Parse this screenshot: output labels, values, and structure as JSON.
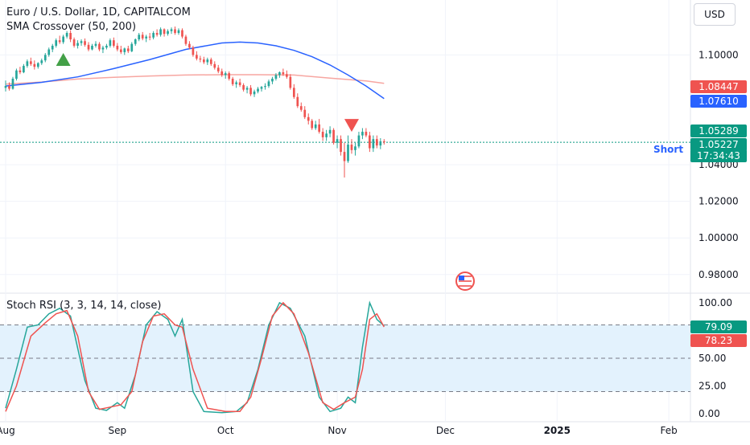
{
  "header": {
    "symbol_line": "Euro / U.S. Dollar, 1D, CAPITALCOM",
    "indicator_line": "SMA Crossover (50, 200)",
    "currency_button": "USD"
  },
  "colors": {
    "up": "#26a69a",
    "down": "#ef5350",
    "sma50": "#2962ff",
    "sma200": "#f7a6a1",
    "stoch_k": "#26a69a",
    "stoch_d": "#ef5350",
    "band_fill": "#e3f2fd",
    "current_price_line": "#089981"
  },
  "price_scale": {
    "tick_labels": [
      "1.10000",
      "1.04000",
      "1.02000",
      "1.00000",
      "0.98000"
    ],
    "tags": [
      {
        "text": "1.08447",
        "color": "#ef5350"
      },
      {
        "text": "1.07610",
        "color": "#2962ff"
      },
      {
        "text": "1.05289",
        "color": "#089981"
      },
      {
        "text": "1.05227",
        "color": "#089981"
      },
      {
        "text": "17:34:43",
        "color": "#089981"
      }
    ]
  },
  "annotations": {
    "short_label": "Short",
    "buy_marker": "up-triangle",
    "sell_marker": "down-triangle",
    "flag_icon": "us-flag-icon"
  },
  "stoch_panel": {
    "title": "Stoch RSI (3, 3, 14, 14, close)",
    "tick_labels": [
      "100.00",
      "50.00",
      "25.00",
      "0.00"
    ],
    "tags": [
      {
        "text": "79.09",
        "color": "#089981"
      },
      {
        "text": "78.23",
        "color": "#ef5350"
      }
    ]
  },
  "time_axis": {
    "labels": [
      "Aug",
      "Sep",
      "Oct",
      "Nov",
      "Dec",
      "2025",
      "Feb"
    ]
  },
  "chart_data": [
    {
      "type": "candlestick",
      "title": "Euro / U.S. Dollar, 1D, CAPITALCOM",
      "ylim": [
        0.972,
        1.13
      ],
      "x_range_days": [
        0,
        190
      ],
      "tick_days": [
        0,
        31,
        61,
        92,
        122,
        153,
        184
      ],
      "candles": [
        [
          0,
          1.082,
          1.086,
          1.08,
          1.083
        ],
        [
          1,
          1.083,
          1.085,
          1.0805,
          1.0815
        ],
        [
          2,
          1.0815,
          1.088,
          1.081,
          1.087
        ],
        [
          3,
          1.087,
          1.0925,
          1.086,
          1.0915
        ],
        [
          4,
          1.0915,
          1.0935,
          1.0895,
          1.0905
        ],
        [
          5,
          1.0905,
          1.095,
          1.09,
          1.094
        ],
        [
          6,
          1.094,
          1.0975,
          1.093,
          1.0965
        ],
        [
          7,
          1.0965,
          1.0985,
          1.094,
          1.095
        ],
        [
          8,
          1.095,
          1.097,
          1.092,
          1.0935
        ],
        [
          9,
          1.0935,
          1.096,
          1.0925,
          1.0955
        ],
        [
          10,
          1.0955,
          1.098,
          1.0945,
          1.097
        ],
        [
          11,
          1.097,
          1.101,
          1.096,
          1.1
        ],
        [
          12,
          1.1,
          1.104,
          1.099,
          1.103
        ],
        [
          13,
          1.103,
          1.106,
          1.1015,
          1.105
        ],
        [
          14,
          1.105,
          1.109,
          1.104,
          1.108
        ],
        [
          15,
          1.108,
          1.1105,
          1.106,
          1.107
        ],
        [
          16,
          1.107,
          1.111,
          1.106,
          1.11
        ],
        [
          17,
          1.11,
          1.113,
          1.109,
          1.112
        ],
        [
          18,
          1.112,
          1.1135,
          1.107,
          1.1085
        ],
        [
          19,
          1.1085,
          1.1095,
          1.104,
          1.105
        ],
        [
          20,
          1.105,
          1.108,
          1.1035,
          1.1065
        ],
        [
          21,
          1.1065,
          1.1085,
          1.105,
          1.1075
        ],
        [
          22,
          1.1075,
          1.109,
          1.1045,
          1.1055
        ],
        [
          23,
          1.1055,
          1.107,
          1.102,
          1.103
        ],
        [
          24,
          1.103,
          1.106,
          1.1025,
          1.105
        ],
        [
          25,
          1.105,
          1.1075,
          1.104,
          1.106
        ],
        [
          26,
          1.106,
          1.107,
          1.102,
          1.103
        ],
        [
          27,
          1.103,
          1.105,
          1.101,
          1.104
        ],
        [
          28,
          1.104,
          1.106,
          1.103,
          1.105
        ],
        [
          29,
          1.105,
          1.109,
          1.104,
          1.108
        ],
        [
          30,
          1.108,
          1.1095,
          1.104,
          1.105
        ],
        [
          31,
          1.105,
          1.1065,
          1.102,
          1.103
        ],
        [
          32,
          1.103,
          1.105,
          1.1005,
          1.1015
        ],
        [
          33,
          1.1015,
          1.104,
          1.1,
          1.1035
        ],
        [
          34,
          1.1035,
          1.105,
          1.101,
          1.102
        ],
        [
          35,
          1.102,
          1.107,
          1.1015,
          1.106
        ],
        [
          36,
          1.106,
          1.109,
          1.105,
          1.1085
        ],
        [
          37,
          1.1085,
          1.112,
          1.1075,
          1.111
        ],
        [
          38,
          1.111,
          1.1125,
          1.108,
          1.109
        ],
        [
          39,
          1.109,
          1.111,
          1.107,
          1.11
        ],
        [
          40,
          1.11,
          1.112,
          1.108,
          1.1095
        ],
        [
          41,
          1.1095,
          1.113,
          1.1085,
          1.112
        ],
        [
          42,
          1.112,
          1.114,
          1.11,
          1.111
        ],
        [
          43,
          1.111,
          1.115,
          1.11,
          1.114
        ],
        [
          44,
          1.114,
          1.1145,
          1.11,
          1.1115
        ],
        [
          45,
          1.1115,
          1.114,
          1.1105,
          1.113
        ],
        [
          46,
          1.113,
          1.115,
          1.1115,
          1.114
        ],
        [
          47,
          1.114,
          1.1155,
          1.111,
          1.112
        ],
        [
          48,
          1.112,
          1.1145,
          1.111,
          1.1135
        ],
        [
          49,
          1.1135,
          1.1145,
          1.109,
          1.11
        ],
        [
          50,
          1.11,
          1.111,
          1.105,
          1.106
        ],
        [
          51,
          1.106,
          1.1075,
          1.103,
          1.104
        ],
        [
          52,
          1.104,
          1.105,
          1.099,
          1.1
        ],
        [
          53,
          1.1,
          1.102,
          1.097,
          1.098
        ],
        [
          54,
          1.098,
          1.0995,
          1.096,
          1.0975
        ],
        [
          55,
          1.0975,
          1.099,
          1.095,
          1.096
        ],
        [
          56,
          1.096,
          1.0985,
          1.0945,
          1.0975
        ],
        [
          57,
          1.0975,
          1.0985,
          1.094,
          1.095
        ],
        [
          58,
          1.095,
          1.0965,
          1.092,
          1.093
        ],
        [
          59,
          1.093,
          1.0945,
          1.09,
          1.091
        ],
        [
          60,
          1.091,
          1.0925,
          1.088,
          1.089
        ],
        [
          61,
          1.089,
          1.091,
          1.087,
          1.09
        ],
        [
          62,
          1.09,
          1.091,
          1.086,
          1.087
        ],
        [
          63,
          1.087,
          1.088,
          1.083,
          1.084
        ],
        [
          64,
          1.084,
          1.086,
          1.082,
          1.085
        ],
        [
          65,
          1.085,
          1.087,
          1.0825,
          1.0835
        ],
        [
          66,
          1.0835,
          1.0845,
          1.08,
          1.081
        ],
        [
          67,
          1.081,
          1.083,
          1.079,
          1.082
        ],
        [
          68,
          1.082,
          1.0835,
          1.0775,
          1.0785
        ],
        [
          69,
          1.0785,
          1.081,
          1.077,
          1.08
        ],
        [
          70,
          1.08,
          1.0825,
          1.079,
          1.0815
        ],
        [
          71,
          1.0815,
          1.083,
          1.08,
          1.0825
        ],
        [
          72,
          1.0825,
          1.0845,
          1.081,
          1.083
        ],
        [
          73,
          1.083,
          1.0865,
          1.082,
          1.0855
        ],
        [
          74,
          1.0855,
          1.088,
          1.084,
          1.087
        ],
        [
          75,
          1.087,
          1.09,
          1.086,
          1.089
        ],
        [
          76,
          1.089,
          1.091,
          1.0875,
          1.0905
        ],
        [
          77,
          1.0905,
          1.0925,
          1.0885,
          1.0895
        ],
        [
          78,
          1.0895,
          1.0915,
          1.087,
          1.088
        ],
        [
          79,
          1.088,
          1.0895,
          1.081,
          1.082
        ],
        [
          80,
          1.082,
          1.084,
          1.076,
          1.077
        ],
        [
          81,
          1.077,
          1.079,
          1.071,
          1.072
        ],
        [
          82,
          1.072,
          1.074,
          1.069,
          1.07
        ],
        [
          83,
          1.07,
          1.072,
          1.065,
          1.066
        ],
        [
          84,
          1.066,
          1.068,
          1.062,
          1.064
        ],
        [
          85,
          1.064,
          1.065,
          1.059,
          1.06
        ],
        [
          86,
          1.06,
          1.064,
          1.059,
          1.062
        ],
        [
          87,
          1.062,
          1.065,
          1.057,
          1.058
        ],
        [
          88,
          1.058,
          1.06,
          1.053,
          1.055
        ],
        [
          89,
          1.055,
          1.059,
          1.053,
          1.057
        ],
        [
          90,
          1.057,
          1.061,
          1.055,
          1.059
        ],
        [
          91,
          1.059,
          1.06,
          1.051,
          1.052
        ],
        [
          92,
          1.052,
          1.056,
          1.049,
          1.054
        ],
        [
          93,
          1.054,
          1.056,
          1.045,
          1.047
        ],
        [
          94,
          1.047,
          1.052,
          1.033,
          1.042
        ],
        [
          95,
          1.042,
          1.056,
          1.041,
          1.051
        ],
        [
          96,
          1.051,
          1.054,
          1.046,
          1.048
        ],
        [
          97,
          1.048,
          1.052,
          1.045,
          1.05
        ],
        [
          98,
          1.05,
          1.058,
          1.049,
          1.056
        ],
        [
          99,
          1.056,
          1.06,
          1.054,
          1.058
        ],
        [
          100,
          1.058,
          1.06,
          1.055,
          1.056
        ],
        [
          101,
          1.056,
          1.058,
          1.047,
          1.049
        ],
        [
          102,
          1.049,
          1.056,
          1.047,
          1.054
        ],
        [
          103,
          1.054,
          1.056,
          1.049,
          1.0505
        ],
        [
          104,
          1.0505,
          1.0545,
          1.0485,
          1.0528
        ],
        [
          105,
          1.0528,
          1.054,
          1.051,
          1.0523
        ]
      ],
      "sma50": [
        [
          0,
          1.083
        ],
        [
          10,
          1.085
        ],
        [
          20,
          1.088
        ],
        [
          30,
          1.0925
        ],
        [
          40,
          1.0975
        ],
        [
          50,
          1.103
        ],
        [
          60,
          1.1065
        ],
        [
          65,
          1.107
        ],
        [
          70,
          1.1065
        ],
        [
          75,
          1.105
        ],
        [
          80,
          1.1025
        ],
        [
          85,
          1.099
        ],
        [
          90,
          1.0945
        ],
        [
          95,
          1.089
        ],
        [
          100,
          1.083
        ],
        [
          105,
          1.0761
        ]
      ],
      "sma200": [
        [
          0,
          1.084
        ],
        [
          10,
          1.0852
        ],
        [
          20,
          1.0868
        ],
        [
          30,
          1.0878
        ],
        [
          40,
          1.0885
        ],
        [
          50,
          1.089
        ],
        [
          60,
          1.0892
        ],
        [
          70,
          1.0892
        ],
        [
          80,
          1.089
        ],
        [
          90,
          1.0873
        ],
        [
          100,
          1.0858
        ],
        [
          105,
          1.0845
        ]
      ],
      "current_price": 1.05227,
      "signals": [
        {
          "day": 16,
          "price": 1.0975,
          "type": "buy"
        },
        {
          "day": 96,
          "price": 1.0615,
          "type": "sell"
        }
      ]
    },
    {
      "type": "line",
      "title": "Stoch RSI (3, 3, 14, 14, close)",
      "ylim": [
        -5,
        105
      ],
      "bands": [
        20,
        50,
        80
      ],
      "series": [
        {
          "name": "K",
          "color": "#26a69a",
          "values": [
            [
              0,
              5
            ],
            [
              3,
              40
            ],
            [
              6,
              78
            ],
            [
              9,
              80
            ],
            [
              12,
              90
            ],
            [
              15,
              95
            ],
            [
              18,
              88
            ],
            [
              22,
              30
            ],
            [
              25,
              5
            ],
            [
              28,
              3
            ],
            [
              31,
              10
            ],
            [
              33,
              5
            ],
            [
              36,
              35
            ],
            [
              39,
              80
            ],
            [
              42,
              92
            ],
            [
              45,
              85
            ],
            [
              47,
              70
            ],
            [
              49,
              85
            ],
            [
              52,
              20
            ],
            [
              55,
              2
            ],
            [
              60,
              1
            ],
            [
              64,
              2
            ],
            [
              67,
              10
            ],
            [
              70,
              40
            ],
            [
              73,
              80
            ],
            [
              76,
              100
            ],
            [
              79,
              95
            ],
            [
              83,
              70
            ],
            [
              87,
              15
            ],
            [
              90,
              2
            ],
            [
              93,
              5
            ],
            [
              95,
              15
            ],
            [
              97,
              10
            ],
            [
              99,
              60
            ],
            [
              101,
              100
            ],
            [
              103,
              85
            ],
            [
              105,
              79.09
            ]
          ]
        },
        {
          "name": "D",
          "color": "#ef5350",
          "values": [
            [
              0,
              2
            ],
            [
              3,
              25
            ],
            [
              7,
              70
            ],
            [
              11,
              82
            ],
            [
              14,
              90
            ],
            [
              17,
              93
            ],
            [
              20,
              70
            ],
            [
              23,
              20
            ],
            [
              26,
              4
            ],
            [
              29,
              6
            ],
            [
              32,
              8
            ],
            [
              35,
              20
            ],
            [
              38,
              65
            ],
            [
              41,
              88
            ],
            [
              44,
              90
            ],
            [
              47,
              80
            ],
            [
              49,
              78
            ],
            [
              52,
              40
            ],
            [
              56,
              5
            ],
            [
              61,
              2
            ],
            [
              65,
              2
            ],
            [
              68,
              15
            ],
            [
              71,
              50
            ],
            [
              74,
              88
            ],
            [
              77,
              100
            ],
            [
              80,
              90
            ],
            [
              84,
              55
            ],
            [
              88,
              10
            ],
            [
              91,
              4
            ],
            [
              94,
              10
            ],
            [
              97,
              15
            ],
            [
              99,
              40
            ],
            [
              101,
              85
            ],
            [
              103,
              90
            ],
            [
              105,
              78.23
            ]
          ]
        }
      ]
    }
  ]
}
